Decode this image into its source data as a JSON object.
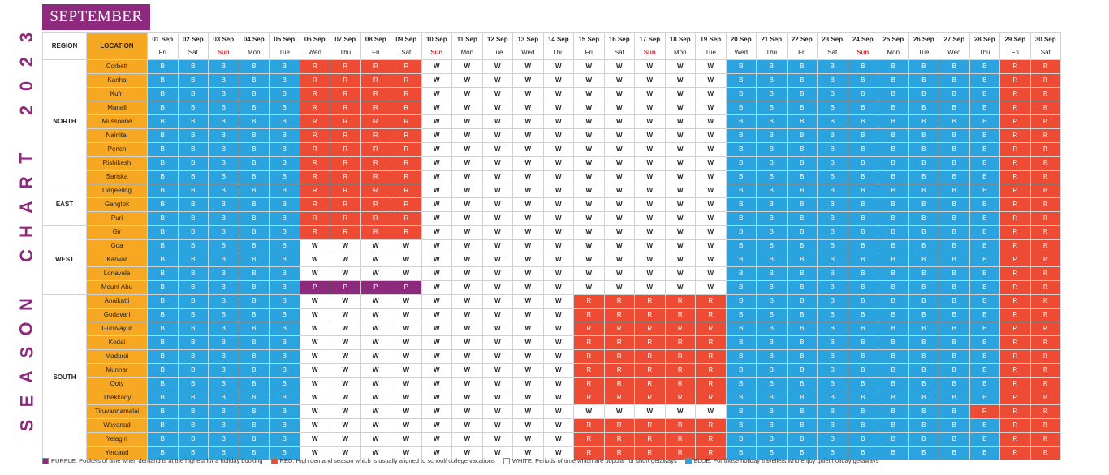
{
  "side_title": [
    "S",
    "E",
    "A",
    "S",
    "O",
    "N",
    " ",
    "C",
    "H",
    "A",
    "R",
    "T",
    " ",
    "2",
    "0",
    "2",
    "3"
  ],
  "month": "SEPTEMBER",
  "headers": {
    "region": "REGION",
    "location": "LOCATION"
  },
  "colors": {
    "B": "#2ba3df",
    "R": "#ee4b34",
    "W": "#ffffff",
    "P": "#8e2a7e",
    "location": "#f7a823",
    "accent": "#8e2a7e"
  },
  "days": [
    {
      "d": "01 Sep",
      "w": "Fri"
    },
    {
      "d": "02 Sep",
      "w": "Sat"
    },
    {
      "d": "03 Sep",
      "w": "Sun",
      "sun": true
    },
    {
      "d": "04 Sep",
      "w": "Mon"
    },
    {
      "d": "05 Sep",
      "w": "Tue"
    },
    {
      "d": "06 Sep",
      "w": "Wed"
    },
    {
      "d": "07 Sep",
      "w": "Thu"
    },
    {
      "d": "08 Sep",
      "w": "Fri"
    },
    {
      "d": "09 Sep",
      "w": "Sat"
    },
    {
      "d": "10 Sep",
      "w": "Sun",
      "sun": true
    },
    {
      "d": "11 Sep",
      "w": "Mon"
    },
    {
      "d": "12 Sep",
      "w": "Tue"
    },
    {
      "d": "13 Sep",
      "w": "Wed"
    },
    {
      "d": "14 Sep",
      "w": "Thu"
    },
    {
      "d": "15 Sep",
      "w": "Fri"
    },
    {
      "d": "16 Sep",
      "w": "Sat"
    },
    {
      "d": "17 Sep",
      "w": "Sun",
      "sun": true
    },
    {
      "d": "18 Sep",
      "w": "Mon"
    },
    {
      "d": "19 Sep",
      "w": "Tue"
    },
    {
      "d": "20 Sep",
      "w": "Wed"
    },
    {
      "d": "21 Sep",
      "w": "Thu"
    },
    {
      "d": "22 Sep",
      "w": "Fri"
    },
    {
      "d": "23 Sep",
      "w": "Sat"
    },
    {
      "d": "24 Sep",
      "w": "Sun",
      "sun": true
    },
    {
      "d": "25 Sep",
      "w": "Mon"
    },
    {
      "d": "26 Sep",
      "w": "Tue"
    },
    {
      "d": "27 Sep",
      "w": "Wed"
    },
    {
      "d": "28 Sep",
      "w": "Thu"
    },
    {
      "d": "29 Sep",
      "w": "Fri"
    },
    {
      "d": "30 Sep",
      "w": "Sat"
    }
  ],
  "regions": [
    {
      "name": "NORTH",
      "rows": [
        {
          "loc": "Corbett",
          "cells": "BBBBBRRRRWWWWWWWWWWBBBBBBBBBRR"
        },
        {
          "loc": "Kanha",
          "cells": "BBBBBRRRRWWWWWWWWWWBBBBBBBBBRR"
        },
        {
          "loc": "Kufri",
          "cells": "BBBBBRRRRWWWWWWWWWWBBBBBBBBBRR"
        },
        {
          "loc": "Manali",
          "cells": "BBBBBRRRRWWWWWWWWWWBBBBBBBBBRR"
        },
        {
          "loc": "Mussoorie",
          "cells": "BBBBBRRRRWWWWWWWWWWBBBBBBBBBRR"
        },
        {
          "loc": "Nainital",
          "cells": "BBBBBRRRRWWWWWWWWWWBBBBBBBBBRR"
        },
        {
          "loc": "Pench",
          "cells": "BBBBBRRRRWWWWWWWWWWBBBBBBBBBRR"
        },
        {
          "loc": "Rishikesh",
          "cells": "BBBBBRRRRWWWWWWWWWWBBBBBBBBBRR"
        },
        {
          "loc": "Sariska",
          "cells": "BBBBBRRRRWWWWWWWWWWBBBBBBBBBRR"
        }
      ]
    },
    {
      "name": "EAST",
      "rows": [
        {
          "loc": "Darjeeling",
          "cells": "BBBBBRRRRWWWWWWWWWWBBBBBBBBBRR"
        },
        {
          "loc": "Gangtok",
          "cells": "BBBBBRRRRWWWWWWWWWWBBBBBBBBBRR"
        },
        {
          "loc": "Puri",
          "cells": "BBBBBRRRRWWWWWWWWWWBBBBBBBBBRR"
        }
      ]
    },
    {
      "name": "WEST",
      "rows": [
        {
          "loc": "Gir",
          "cells": "BBBBBRRRRWWWWWWWWWWBBBBBBBBBRR"
        },
        {
          "loc": "Goa",
          "cells": "BBBBBWWWWWWWWWWWWWWBBBBBBBBBRR"
        },
        {
          "loc": "Karwar",
          "cells": "BBBBBWWWWWWWWWWWWWWBBBBBBBBBRR"
        },
        {
          "loc": "Lonavala",
          "cells": "BBBBBWWWWWWWWWWWWWWBBBBBBBBBRR"
        },
        {
          "loc": "Mount Abu",
          "cells": "BBBBBPPPPWWWWWWWWWWBBBBBBBBBRR"
        }
      ]
    },
    {
      "name": "SOUTH",
      "rows": [
        {
          "loc": "Anaikatti",
          "cells": "BBBBBWWWWWWWWWRRRRRBBBBBBBBBRR"
        },
        {
          "loc": "Godavari",
          "cells": "BBBBBWWWWWWWWWRRRRRBBBBBBBBBRR"
        },
        {
          "loc": "Guruvayur",
          "cells": "BBBBBWWWWWWWWWRRRRRBBBBBBBBBRR"
        },
        {
          "loc": "Kodai",
          "cells": "BBBBBWWWWWWWWWRRRRRBBBBBBBBBRR"
        },
        {
          "loc": "Madurai",
          "cells": "BBBBBWWWWWWWWWRRRRRBBBBBBBBBRR"
        },
        {
          "loc": "Munnar",
          "cells": "BBBBBWWWWWWWWWRRRRRBBBBBBBBBRR"
        },
        {
          "loc": "Ooty",
          "cells": "BBBBBWWWWWWWWWRRRRRBBBBBBBBBRR"
        },
        {
          "loc": "Thekkady",
          "cells": "BBBBBWWWWWWWWWRRRRRBBBBBBBBBRR"
        },
        {
          "loc": "Tiruvannamalai",
          "cells": "BBBBBWWWWWWWWWWWWWWBBBBBBBBRRR"
        },
        {
          "loc": "Wayanad",
          "cells": "BBBBBWWWWWWWWWRRRRRBBBBBBBBBRR"
        },
        {
          "loc": "Yelagiri",
          "cells": "BBBBBWWWWWWWWWRRRRRBBBBBBBBBRR"
        },
        {
          "loc": "Yercaud",
          "cells": "BBBBBWWWWWWWWWRRRRRBBBBBBBBBRR"
        }
      ]
    }
  ],
  "legend": [
    {
      "code": "P",
      "text": "PURPLE: Pockets of time when demand is at the highest for a holiday booking"
    },
    {
      "code": "R",
      "text": "RED: High demand season which is usually aligned to school/ college vacations"
    },
    {
      "code": "W",
      "text": "WHITE: Periods of time which are popular for short getaways"
    },
    {
      "code": "B",
      "text": "BLUE: For those holiday travellers who enjoy quiet holiday getaways"
    }
  ]
}
